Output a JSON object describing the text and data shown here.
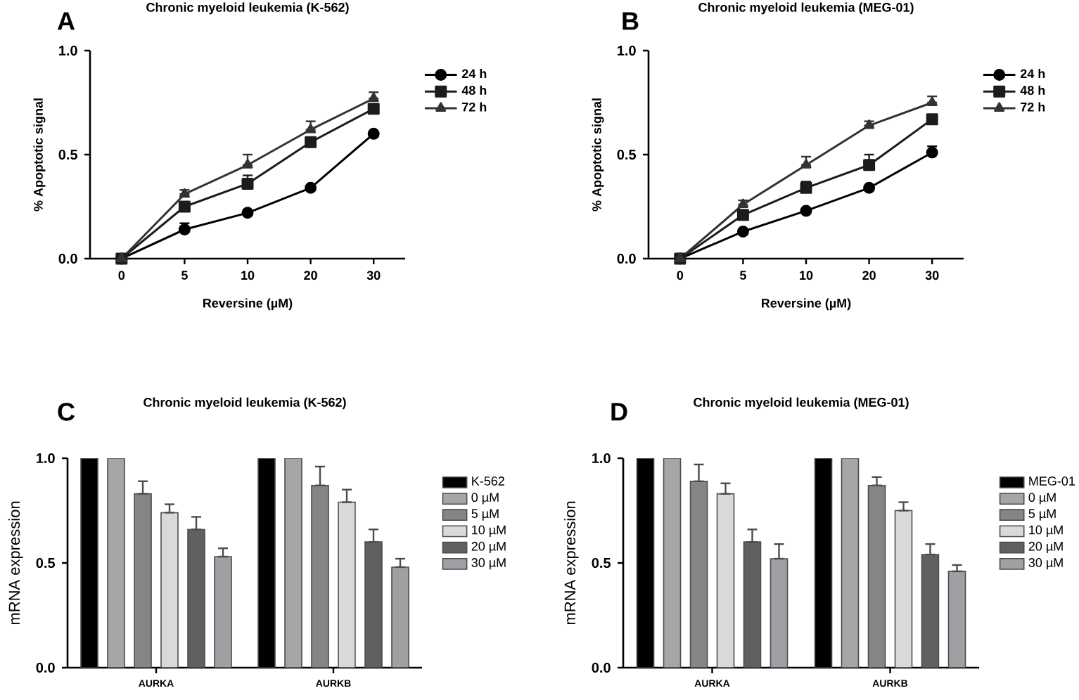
{
  "chart_data": [
    {
      "type": "line",
      "title": "Chronic myeloid leukemia (K-562)",
      "xlabel": "Reversine (µM)",
      "ylabel": "% Apoptotic signal",
      "annotations": [
        "A"
      ],
      "categories": [
        "0",
        "5",
        "10",
        "20",
        "30"
      ],
      "ylim": [
        0,
        1
      ],
      "yticks": [
        {
          "value": 0,
          "label": "0.0"
        },
        {
          "value": 0.5,
          "label": "0.5"
        },
        {
          "value": 1,
          "label": "1.0"
        }
      ],
      "legend": "top right",
      "series": [
        {
          "name": "24 h",
          "color": "#000000",
          "marker": "circle",
          "values": [
            0,
            0.14,
            0.22,
            0.34,
            0.6
          ],
          "errors": [
            null,
            [
              0.14,
              0.17
            ],
            null,
            null,
            null
          ]
        },
        {
          "name": "48 h",
          "color": "#1c1c1c",
          "marker": "square",
          "values": [
            0,
            0.25,
            0.36,
            0.56,
            0.72
          ],
          "errors": [
            null,
            [
              0.25,
              0.27
            ],
            [
              0.36,
              0.4
            ],
            [
              0.56,
              0.58
            ],
            [
              0.72,
              0.74
            ]
          ]
        },
        {
          "name": "72 h",
          "color": "#333333",
          "marker": "triangle",
          "values": [
            0,
            0.31,
            0.45,
            0.62,
            0.77
          ],
          "errors": [
            null,
            [
              0.31,
              0.33
            ],
            [
              0.45,
              0.5
            ],
            [
              0.62,
              0.66
            ],
            [
              0.77,
              0.8
            ]
          ]
        }
      ]
    },
    {
      "type": "line",
      "title": "Chronic myeloid leukemia (MEG-01)",
      "xlabel": "Reversine (µM)",
      "ylabel": "% Apoptotic signal",
      "annotations": [
        "B"
      ],
      "categories": [
        "0",
        "5",
        "10",
        "20",
        "30"
      ],
      "ylim": [
        0,
        1
      ],
      "yticks": [
        {
          "value": 0,
          "label": "0.0"
        },
        {
          "value": 0.5,
          "label": "0.5"
        },
        {
          "value": 1,
          "label": "1.0"
        }
      ],
      "legend": "top right",
      "series": [
        {
          "name": "24 h",
          "color": "#000000",
          "marker": "circle",
          "values": [
            0,
            0.13,
            0.23,
            0.34,
            0.51
          ],
          "errors": [
            null,
            null,
            null,
            null,
            [
              0.51,
              0.54
            ]
          ]
        },
        {
          "name": "48 h",
          "color": "#1c1c1c",
          "marker": "square",
          "values": [
            0,
            0.21,
            0.34,
            0.45,
            0.67
          ],
          "errors": [
            null,
            [
              0.21,
              0.23
            ],
            [
              0.34,
              0.37
            ],
            [
              0.45,
              0.5
            ],
            null
          ]
        },
        {
          "name": "72 h",
          "color": "#333333",
          "marker": "triangle",
          "values": [
            0,
            0.26,
            0.45,
            0.64,
            0.75
          ],
          "errors": [
            null,
            [
              0.26,
              0.28
            ],
            [
              0.45,
              0.49
            ],
            [
              0.64,
              0.66
            ],
            [
              0.75,
              0.78
            ]
          ]
        }
      ]
    },
    {
      "type": "bar",
      "title": "Chronic myeloid leukemia (K-562)",
      "ylabel": "mRNA expression",
      "annotations": [
        "C"
      ],
      "categories": [
        "AURKA",
        "AURKB"
      ],
      "ylim": [
        0,
        1
      ],
      "yticks": [
        {
          "value": 0,
          "label": "0.0"
        },
        {
          "value": 0.5,
          "label": "0.5"
        },
        {
          "value": 1,
          "label": "1.0"
        }
      ],
      "legend": "top right",
      "series": [
        {
          "name": "K-562",
          "color": "#000000",
          "values": [
            1,
            1
          ],
          "errors": [
            null,
            null
          ]
        },
        {
          "name": "0 µM",
          "color": "#a6a6a8",
          "values": [
            1,
            1
          ],
          "errors": [
            null,
            null
          ]
        },
        {
          "name": "5 µM",
          "color": "#858585",
          "values": [
            0.83,
            0.87
          ],
          "errors": [
            [
              0.83,
              0.89
            ],
            [
              0.87,
              0.96
            ]
          ]
        },
        {
          "name": "10 µM",
          "color": "#d9d9d9",
          "values": [
            0.74,
            0.79
          ],
          "errors": [
            [
              0.74,
              0.78
            ],
            [
              0.79,
              0.85
            ]
          ]
        },
        {
          "name": "20 µM",
          "color": "#606060",
          "values": [
            0.66,
            0.6
          ],
          "errors": [
            [
              0.66,
              0.72
            ],
            [
              0.6,
              0.66
            ]
          ]
        },
        {
          "name": "30 µM",
          "color": "#a0a0a4",
          "values": [
            0.53,
            0.48
          ],
          "errors": [
            [
              0.53,
              0.57
            ],
            [
              0.48,
              0.52
            ]
          ]
        }
      ]
    },
    {
      "type": "bar",
      "title": "Chronic myeloid leukemia (MEG-01)",
      "ylabel": "mRNA expression",
      "annotations": [
        "D"
      ],
      "categories": [
        "AURKA",
        "AURKB"
      ],
      "ylim": [
        0,
        1
      ],
      "yticks": [
        {
          "value": 0,
          "label": "0.0"
        },
        {
          "value": 0.5,
          "label": "0.5"
        },
        {
          "value": 1,
          "label": "1.0"
        }
      ],
      "legend": "top right",
      "series": [
        {
          "name": "MEG-01",
          "color": "#000000",
          "values": [
            1,
            1
          ],
          "errors": [
            null,
            null
          ]
        },
        {
          "name": "0 µM",
          "color": "#a6a6a8",
          "values": [
            1,
            1
          ],
          "errors": [
            null,
            null
          ]
        },
        {
          "name": "5 µM",
          "color": "#858585",
          "values": [
            0.89,
            0.87
          ],
          "errors": [
            [
              0.89,
              0.97
            ],
            [
              0.87,
              0.91
            ]
          ]
        },
        {
          "name": "10 µM",
          "color": "#d9d9d9",
          "values": [
            0.83,
            0.75
          ],
          "errors": [
            [
              0.83,
              0.88
            ],
            [
              0.75,
              0.79
            ]
          ]
        },
        {
          "name": "20 µM",
          "color": "#606060",
          "values": [
            0.6,
            0.54
          ],
          "errors": [
            [
              0.6,
              0.66
            ],
            [
              0.54,
              0.59
            ]
          ]
        },
        {
          "name": "30 µM",
          "color": "#a0a0a4",
          "values": [
            0.52,
            0.46
          ],
          "errors": [
            [
              0.52,
              0.59
            ],
            [
              0.46,
              0.49
            ]
          ]
        }
      ]
    }
  ]
}
